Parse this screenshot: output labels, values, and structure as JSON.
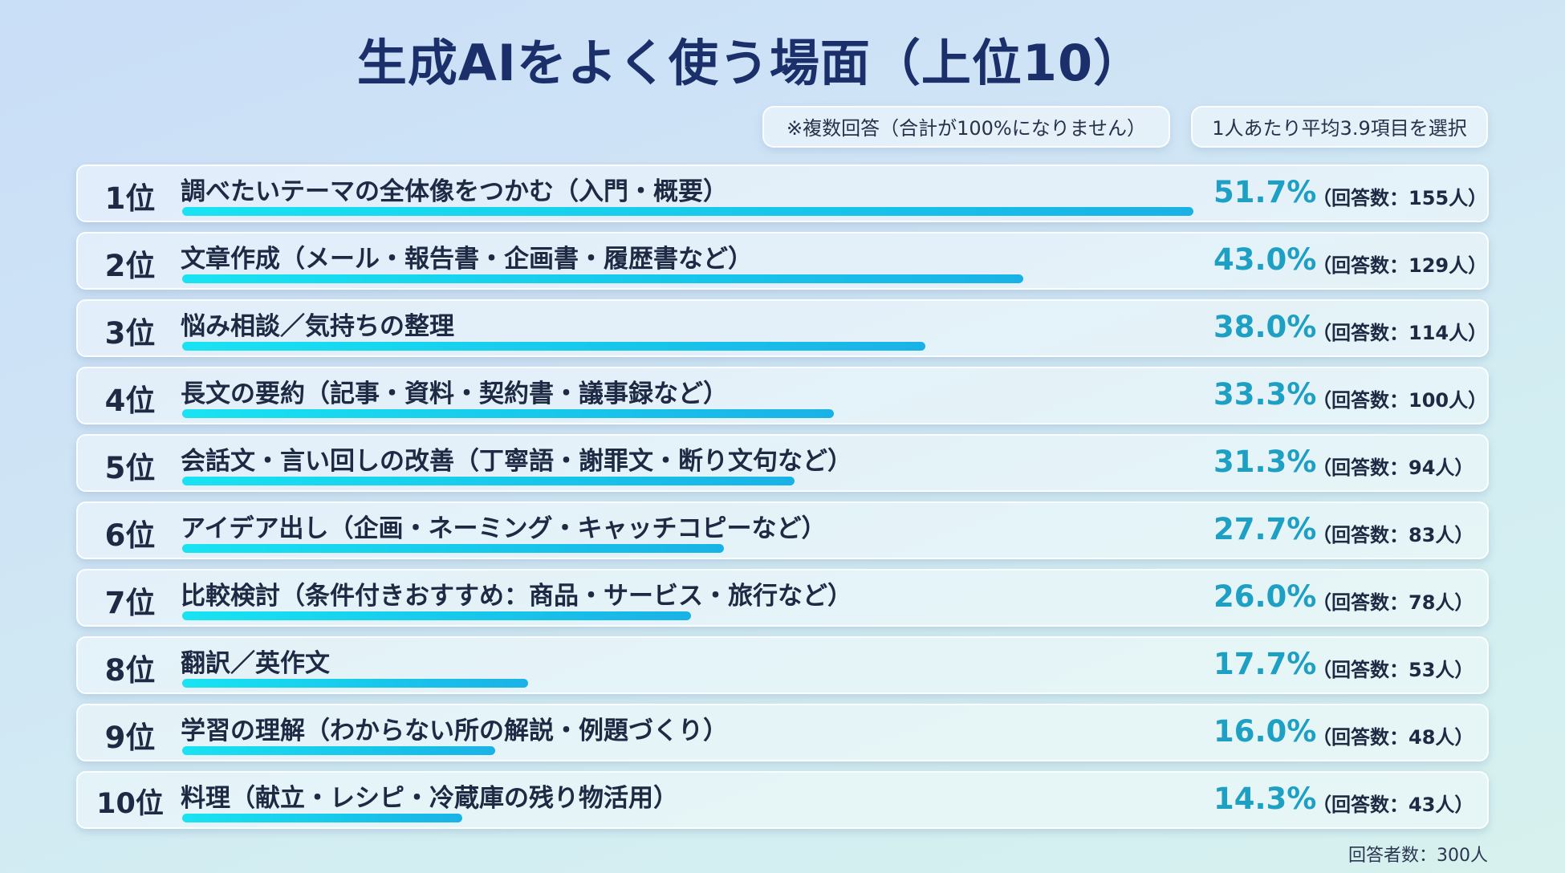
{
  "chart_data": {
    "type": "bar",
    "orientation": "horizontal",
    "title": "生成AIをよく使う場面（上位10）",
    "notes": [
      "※複数回答（合計が100%になりません）",
      "1人あたり平均3.9項目を選択"
    ],
    "ranks": [
      "1位",
      "2位",
      "3位",
      "4位",
      "5位",
      "6位",
      "7位",
      "8位",
      "9位",
      "10位"
    ],
    "categories": [
      "調べたいテーマの全体像をつかむ（入門・概要）",
      "文章作成（メール・報告書・企画書・履歴書など）",
      "悩み相談／気持ちの整理",
      "長文の要約（記事・資料・契約書・議事録など）",
      "会話文・言い回しの改善（丁寧語・謝罪文・断り文句など）",
      "アイデア出し（企画・ネーミング・キャッチコピーなど）",
      "比較検討（条件付きおすすめ：商品・サービス・旅行など）",
      "翻訳／英作文",
      "学習の理解（わからない所の解説・例題づくり）",
      "料理（献立・レシピ・冷蔵庫の残り物活用）"
    ],
    "values": [
      51.7,
      43.0,
      38.0,
      33.3,
      31.3,
      27.7,
      26.0,
      17.7,
      16.0,
      14.3
    ],
    "value_labels": [
      "51.7%",
      "43.0%",
      "38.0%",
      "33.3%",
      "31.3%",
      "27.7%",
      "26.0%",
      "17.7%",
      "16.0%",
      "14.3%"
    ],
    "counts": [
      "（回答数：155人）",
      "（回答数：129人）",
      "（回答数：114人）",
      "（回答数：100人）",
      "（回答数：94人）",
      "（回答数：83人）",
      "（回答数：78人）",
      "（回答数：53人）",
      "（回答数：48人）",
      "（回答数：43人）"
    ],
    "xlim": [
      0,
      51.7
    ],
    "footer": "回答者数：300人",
    "colors": {
      "bar": "#19d6ee",
      "percent": "#1e9fc4",
      "title": "#1b2f6b"
    }
  }
}
